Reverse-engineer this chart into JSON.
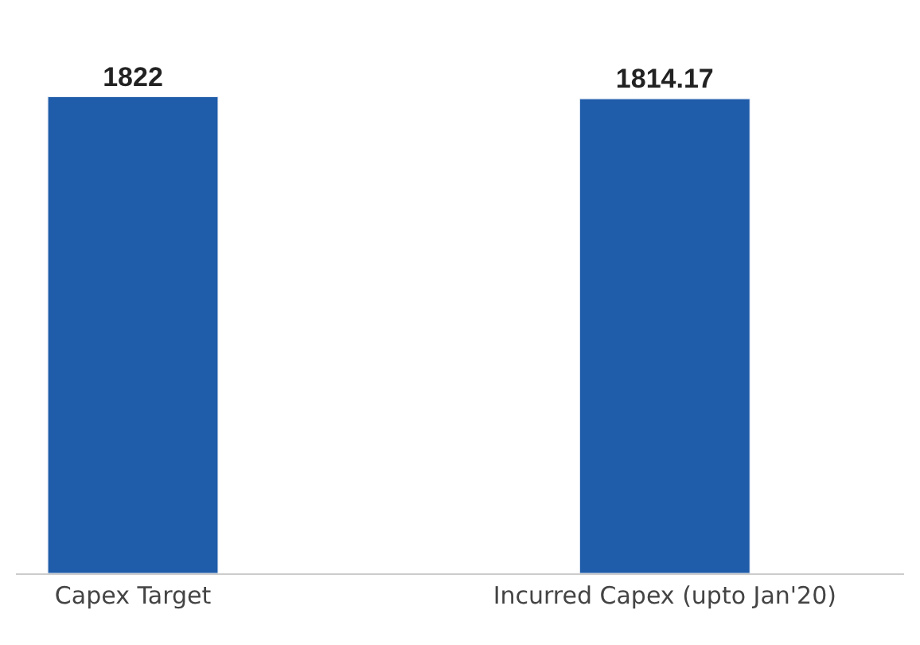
{
  "chart_data": {
    "type": "bar",
    "categories": [
      "Capex Target",
      "Incurred Capex (upto Jan'20)"
    ],
    "values": [
      1822,
      1814.17
    ],
    "color": "#1f5ca9",
    "data_labels": true
  }
}
